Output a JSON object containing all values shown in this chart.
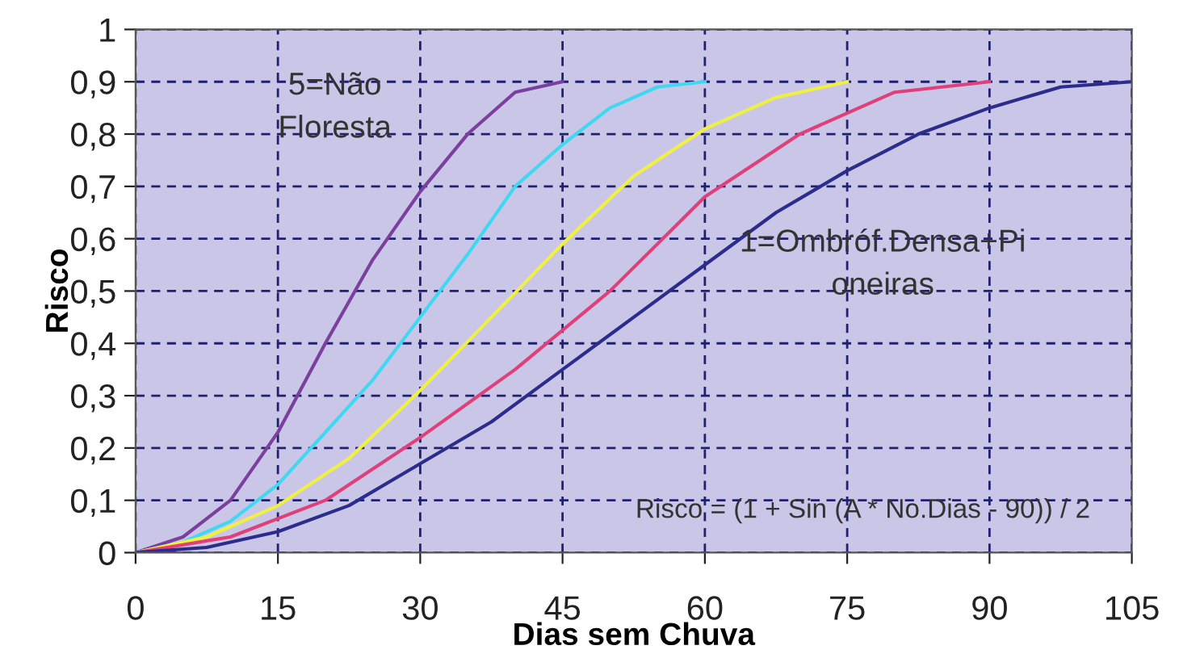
{
  "chart_data": {
    "type": "line",
    "xlabel": "Dias sem Chuva",
    "ylabel": "Risco",
    "xlim": [
      0,
      105
    ],
    "xticks": [
      0,
      15,
      30,
      45,
      60,
      75,
      90,
      105
    ],
    "ylim": [
      0,
      1
    ],
    "yticks": [
      0,
      {
        "value": 0.1,
        "label": "0,1"
      },
      {
        "value": 0.2,
        "label": "0,2"
      },
      {
        "value": 0.3,
        "label": "0,3"
      },
      {
        "value": 0.4,
        "label": "0,4"
      },
      {
        "value": 0.5,
        "label": "0,5"
      },
      {
        "value": 0.6,
        "label": "0,6"
      },
      {
        "value": 0.7,
        "label": "0,7"
      },
      {
        "value": 0.8,
        "label": "0,8"
      },
      {
        "value": 0.9,
        "label": "0,9"
      },
      1
    ],
    "grid": true,
    "line_style": "solid",
    "series": [
      {
        "color": "#7b3f9e",
        "x": [
          0,
          5,
          10,
          15,
          20,
          25,
          30,
          35,
          40,
          45
        ],
        "values": [
          0,
          0.03,
          0.1,
          0.23,
          0.4,
          0.56,
          0.69,
          0.8,
          0.88,
          0.9
        ]
      },
      {
        "color": "#40d8f0",
        "x": [
          0,
          5,
          10,
          15,
          20,
          25,
          30,
          35,
          40,
          45,
          50,
          55,
          60
        ],
        "values": [
          0,
          0.02,
          0.06,
          0.13,
          0.23,
          0.33,
          0.45,
          0.57,
          0.7,
          0.78,
          0.85,
          0.89,
          0.9
        ]
      },
      {
        "color": "#f0f040",
        "x": [
          0,
          7.5,
          15,
          22.5,
          30,
          37.5,
          45,
          52.5,
          60,
          67.5,
          75
        ],
        "values": [
          0,
          0.03,
          0.09,
          0.18,
          0.31,
          0.45,
          0.59,
          0.72,
          0.81,
          0.87,
          0.9
        ]
      },
      {
        "color": "#e0407a",
        "x": [
          0,
          10,
          20,
          30,
          40,
          50,
          60,
          70,
          80,
          90
        ],
        "values": [
          0,
          0.03,
          0.1,
          0.22,
          0.35,
          0.5,
          0.68,
          0.8,
          0.88,
          0.9
        ]
      },
      {
        "color": "#2c2c8c",
        "x": [
          0,
          7.5,
          15,
          22.5,
          30,
          37.5,
          45,
          52.5,
          60,
          67.5,
          75,
          82.5,
          90,
          97.5,
          105
        ],
        "values": [
          0,
          0.01,
          0.04,
          0.09,
          0.17,
          0.25,
          0.35,
          0.45,
          0.55,
          0.65,
          0.73,
          0.8,
          0.85,
          0.89,
          0.9
        ]
      }
    ],
    "annotations": [
      "5=Não\nFloresta",
      "1=Ombróf.Densa+Pi\noneiras",
      "Risco = (1 + Sin (A * No.Dias - 90)) / 2"
    ]
  }
}
